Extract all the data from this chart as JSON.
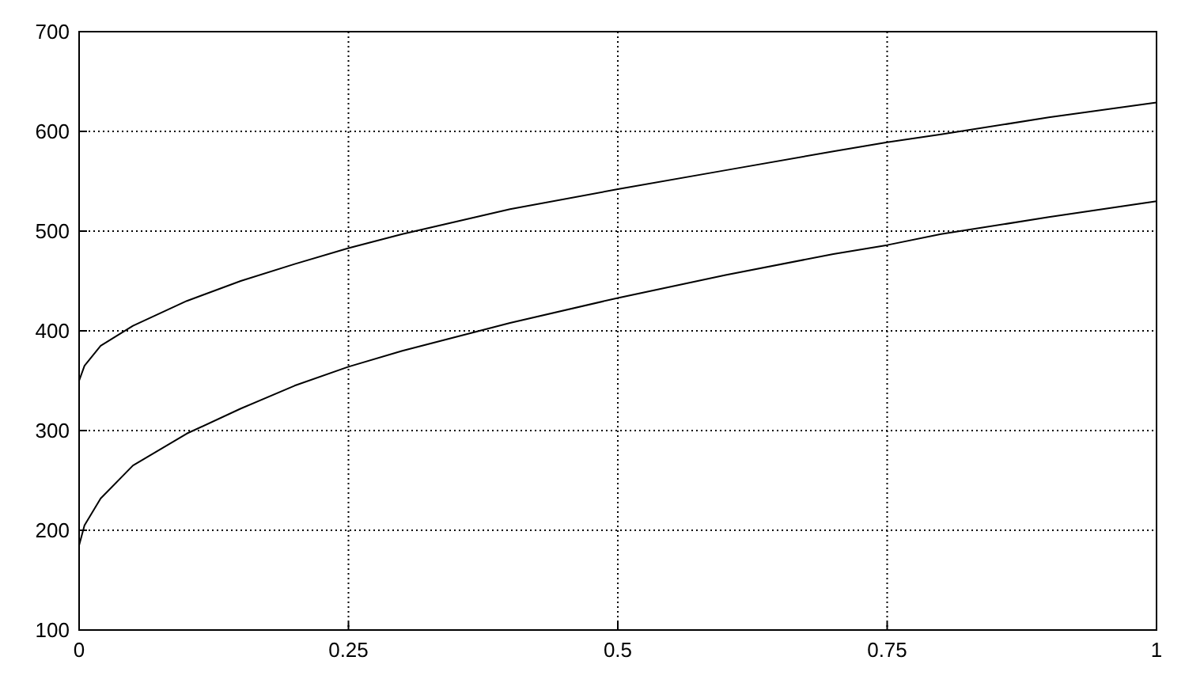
{
  "chart_data": {
    "type": "line",
    "x": [
      0,
      0.005,
      0.02,
      0.05,
      0.1,
      0.15,
      0.2,
      0.25,
      0.3,
      0.4,
      0.5,
      0.6,
      0.7,
      0.75,
      0.8,
      0.9,
      1
    ],
    "series": [
      {
        "color": "#000000",
        "values": [
          350,
          365,
          385,
          405,
          430,
          450,
          467,
          483,
          497,
          522,
          542,
          561,
          580,
          589,
          597,
          614,
          629
        ]
      },
      {
        "color": "#000000",
        "values": [
          185,
          205,
          232,
          265,
          297,
          322,
          345,
          364,
          380,
          408,
          433,
          456,
          477,
          486,
          497,
          514,
          530
        ]
      }
    ],
    "xlim": [
      0,
      1
    ],
    "xticks": [
      0,
      0.25,
      0.5,
      0.75,
      1
    ],
    "ylim": [
      100,
      700
    ],
    "yticks": [
      100,
      200,
      300,
      400,
      500,
      600,
      700
    ],
    "grid": true,
    "marker": "none",
    "line_style": "solid"
  }
}
